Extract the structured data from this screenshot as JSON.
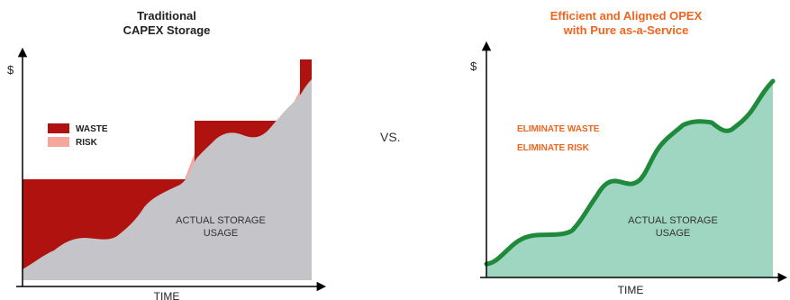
{
  "left_panel": {
    "title_line1": "Traditional",
    "title_line2": "CAPEX Storage",
    "y_axis_label": "$",
    "x_axis_label": "TIME",
    "legend": [
      {
        "label": "WASTE",
        "color": "#b0120f"
      },
      {
        "label": "RISK",
        "color": "#f6a79c"
      }
    ],
    "area_label_line1": "ACTUAL STORAGE",
    "area_label_line2": "USAGE",
    "usage_color": "#c5c5c9"
  },
  "vs_label": "VS.",
  "right_panel": {
    "title_line1": "Efficient and Aligned OPEX",
    "title_line2": "with Pure as-a-Service",
    "y_axis_label": "$",
    "x_axis_label": "TIME",
    "callouts": [
      "ELIMINATE WASTE",
      "ELIMINATE RISK"
    ],
    "area_label_line1": "ACTUAL STORAGE",
    "area_label_line2": "USAGE",
    "line_color": "#1f8a3c",
    "fill_color": "#9fd6c2",
    "callout_color": "#f0641e"
  }
}
